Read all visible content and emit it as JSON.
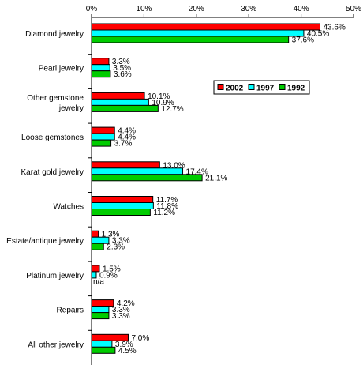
{
  "chart_data": {
    "type": "bar",
    "orientation": "horizontal",
    "title": "",
    "xlabel": "",
    "ylabel": "",
    "x_axis_position": "top",
    "xlim": [
      0,
      50
    ],
    "x_ticks": [
      "0%",
      "10%",
      "20%",
      "30%",
      "40%",
      "50%"
    ],
    "x_tick_values": [
      0,
      10,
      20,
      30,
      40,
      50
    ],
    "grid": false,
    "legend_placement": "right-middle",
    "categories": [
      [
        "Diamond jewelry"
      ],
      [
        "Pearl jewelry"
      ],
      [
        "Other gemstone",
        "jewelry"
      ],
      [
        "Loose gemstones"
      ],
      [
        "Karat gold jewelry"
      ],
      [
        "Watches"
      ],
      [
        "Estate/antique jewelry"
      ],
      [
        "Platinum jewelry"
      ],
      [
        "Repairs"
      ],
      [
        "All other jewelry"
      ]
    ],
    "series": [
      {
        "name": "2002",
        "color": "#ff0000",
        "values": [
          43.6,
          3.3,
          10.1,
          4.4,
          13.0,
          11.7,
          1.3,
          1.5,
          4.2,
          7.0
        ],
        "labels": [
          "43.6%",
          "3.3%",
          "10.1%",
          "4.4%",
          "13.0%",
          "11.7%",
          "1.3%",
          "1.5%",
          "4.2%",
          "7.0%"
        ]
      },
      {
        "name": "1997",
        "color": "#00ffff",
        "values": [
          40.5,
          3.5,
          10.9,
          4.4,
          17.4,
          11.8,
          3.3,
          0.9,
          3.3,
          3.9
        ],
        "labels": [
          "40.5%",
          "3.5%",
          "10.9%",
          "4.4%",
          "17.4%",
          "11.8%",
          "3.3%",
          "0.9%",
          "3.3%",
          "3.9%"
        ]
      },
      {
        "name": "1992",
        "color": "#00cc00",
        "values": [
          37.6,
          3.6,
          12.7,
          3.7,
          21.1,
          11.2,
          2.3,
          null,
          3.3,
          4.5
        ],
        "labels": [
          "37.6%",
          "3.6%",
          "12.7%",
          "3.7%",
          "21.1%",
          "11.2%",
          "2.3%",
          "n/a",
          "3.3%",
          "4.5%"
        ]
      }
    ]
  }
}
